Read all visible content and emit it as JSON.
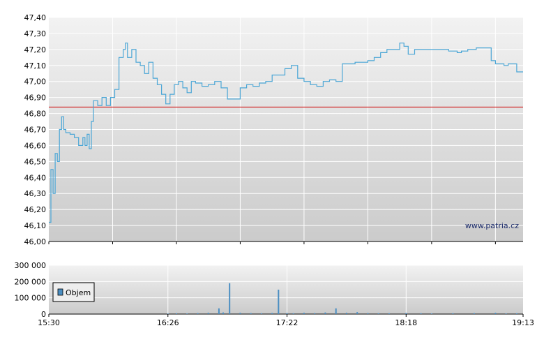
{
  "watermark": "www.patria.cz",
  "colors": {
    "price_line": "#4aa6d6",
    "reference_line": "#cc0000",
    "volume_bar": "#4a8ec2",
    "grid": "#ffffff",
    "plot_top": "#f2f2f2",
    "plot_bottom": "#cbcbcb"
  },
  "chart_data": [
    {
      "type": "line",
      "name": "price",
      "ylim": [
        46.0,
        47.4
      ],
      "y_ticks": [
        "47,40",
        "47,30",
        "47,20",
        "47,10",
        "47,00",
        "46,90",
        "46,80",
        "46,70",
        "46,60",
        "46,50",
        "46,40",
        "46,30",
        "46,20",
        "46,10",
        "46,00"
      ],
      "y_tick_values": [
        47.4,
        47.3,
        47.2,
        47.1,
        47.0,
        46.9,
        46.8,
        46.7,
        46.6,
        46.5,
        46.4,
        46.3,
        46.2,
        46.1,
        46.0
      ],
      "reference_value": 46.84,
      "grid": true,
      "x_range": [
        "15:30",
        "19:13"
      ],
      "points": [
        [
          "15:30",
          46.12
        ],
        [
          "15:31",
          46.45
        ],
        [
          "15:32",
          46.3
        ],
        [
          "15:33",
          46.55
        ],
        [
          "15:34",
          46.5
        ],
        [
          "15:35",
          46.7
        ],
        [
          "15:36",
          46.78
        ],
        [
          "15:37",
          46.7
        ],
        [
          "15:38",
          46.68
        ],
        [
          "15:40",
          46.67
        ],
        [
          "15:42",
          46.65
        ],
        [
          "15:44",
          46.6
        ],
        [
          "15:46",
          46.65
        ],
        [
          "15:47",
          46.6
        ],
        [
          "15:48",
          46.67
        ],
        [
          "15:49",
          46.58
        ],
        [
          "15:50",
          46.75
        ],
        [
          "15:51",
          46.88
        ],
        [
          "15:53",
          46.85
        ],
        [
          "15:55",
          46.9
        ],
        [
          "15:57",
          46.85
        ],
        [
          "15:59",
          46.9
        ],
        [
          "16:01",
          46.95
        ],
        [
          "16:03",
          47.15
        ],
        [
          "16:05",
          47.2
        ],
        [
          "16:06",
          47.24
        ],
        [
          "16:07",
          47.15
        ],
        [
          "16:09",
          47.2
        ],
        [
          "16:11",
          47.12
        ],
        [
          "16:13",
          47.1
        ],
        [
          "16:15",
          47.05
        ],
        [
          "16:17",
          47.12
        ],
        [
          "16:19",
          47.02
        ],
        [
          "16:21",
          46.98
        ],
        [
          "16:23",
          46.92
        ],
        [
          "16:25",
          46.86
        ],
        [
          "16:27",
          46.92
        ],
        [
          "16:29",
          46.98
        ],
        [
          "16:31",
          47.0
        ],
        [
          "16:33",
          46.96
        ],
        [
          "16:35",
          46.93
        ],
        [
          "16:37",
          47.0
        ],
        [
          "16:39",
          46.99
        ],
        [
          "16:42",
          46.97
        ],
        [
          "16:45",
          46.98
        ],
        [
          "16:48",
          47.0
        ],
        [
          "16:51",
          46.96
        ],
        [
          "16:54",
          46.89
        ],
        [
          "16:57",
          46.89
        ],
        [
          "17:00",
          46.96
        ],
        [
          "17:03",
          46.98
        ],
        [
          "17:06",
          46.97
        ],
        [
          "17:09",
          46.99
        ],
        [
          "17:12",
          47.0
        ],
        [
          "17:15",
          47.04
        ],
        [
          "17:18",
          47.04
        ],
        [
          "17:21",
          47.08
        ],
        [
          "17:24",
          47.1
        ],
        [
          "17:27",
          47.02
        ],
        [
          "17:30",
          47.0
        ],
        [
          "17:33",
          46.98
        ],
        [
          "17:36",
          46.97
        ],
        [
          "17:39",
          47.0
        ],
        [
          "17:42",
          47.01
        ],
        [
          "17:45",
          47.0
        ],
        [
          "17:48",
          47.11
        ],
        [
          "17:51",
          47.11
        ],
        [
          "17:54",
          47.12
        ],
        [
          "17:57",
          47.12
        ],
        [
          "18:00",
          47.13
        ],
        [
          "18:03",
          47.15
        ],
        [
          "18:06",
          47.18
        ],
        [
          "18:09",
          47.2
        ],
        [
          "18:12",
          47.2
        ],
        [
          "18:15",
          47.24
        ],
        [
          "18:17",
          47.22
        ],
        [
          "18:19",
          47.17
        ],
        [
          "18:22",
          47.2
        ],
        [
          "18:26",
          47.2
        ],
        [
          "18:32",
          47.2
        ],
        [
          "18:38",
          47.19
        ],
        [
          "18:42",
          47.18
        ],
        [
          "18:44",
          47.19
        ],
        [
          "18:47",
          47.2
        ],
        [
          "18:51",
          47.21
        ],
        [
          "18:56",
          47.21
        ],
        [
          "18:58",
          47.13
        ],
        [
          "19:00",
          47.11
        ],
        [
          "19:02",
          47.11
        ],
        [
          "19:04",
          47.1
        ],
        [
          "19:06",
          47.11
        ],
        [
          "19:08",
          47.11
        ],
        [
          "19:10",
          47.06
        ],
        [
          "19:13",
          47.06
        ]
      ]
    },
    {
      "type": "bar",
      "name": "volume",
      "ylim": [
        0,
        300000
      ],
      "y_ticks": [
        "300 000",
        "200 000",
        "100 000",
        "0"
      ],
      "y_tick_values": [
        300000,
        200000,
        100000,
        0
      ],
      "x_ticks": [
        "15:30",
        "16:26",
        "17:22",
        "18:18",
        "19:13"
      ],
      "legend": "Objem",
      "legend_position": "left",
      "grid": true,
      "bars": [
        [
          "16:26",
          3000
        ],
        [
          "16:30",
          5000
        ],
        [
          "16:35",
          4000
        ],
        [
          "16:40",
          6000
        ],
        [
          "16:45",
          8000
        ],
        [
          "16:50",
          35000
        ],
        [
          "16:52",
          10000
        ],
        [
          "16:55",
          190000
        ],
        [
          "17:00",
          8000
        ],
        [
          "17:05",
          6000
        ],
        [
          "17:10",
          5000
        ],
        [
          "17:15",
          7000
        ],
        [
          "17:18",
          150000
        ],
        [
          "17:22",
          6000
        ],
        [
          "17:25",
          5000
        ],
        [
          "17:30",
          8000
        ],
        [
          "17:35",
          6000
        ],
        [
          "17:40",
          10000
        ],
        [
          "17:45",
          35000
        ],
        [
          "17:50",
          8000
        ],
        [
          "17:55",
          12000
        ],
        [
          "18:00",
          6000
        ],
        [
          "18:05",
          5000
        ],
        [
          "18:10",
          5000
        ],
        [
          "18:18",
          7000
        ],
        [
          "18:25",
          5000
        ],
        [
          "18:30",
          4000
        ],
        [
          "18:40",
          5000
        ],
        [
          "18:50",
          6000
        ],
        [
          "19:00",
          8000
        ],
        [
          "19:05",
          4000
        ],
        [
          "19:10",
          5000
        ]
      ]
    }
  ]
}
